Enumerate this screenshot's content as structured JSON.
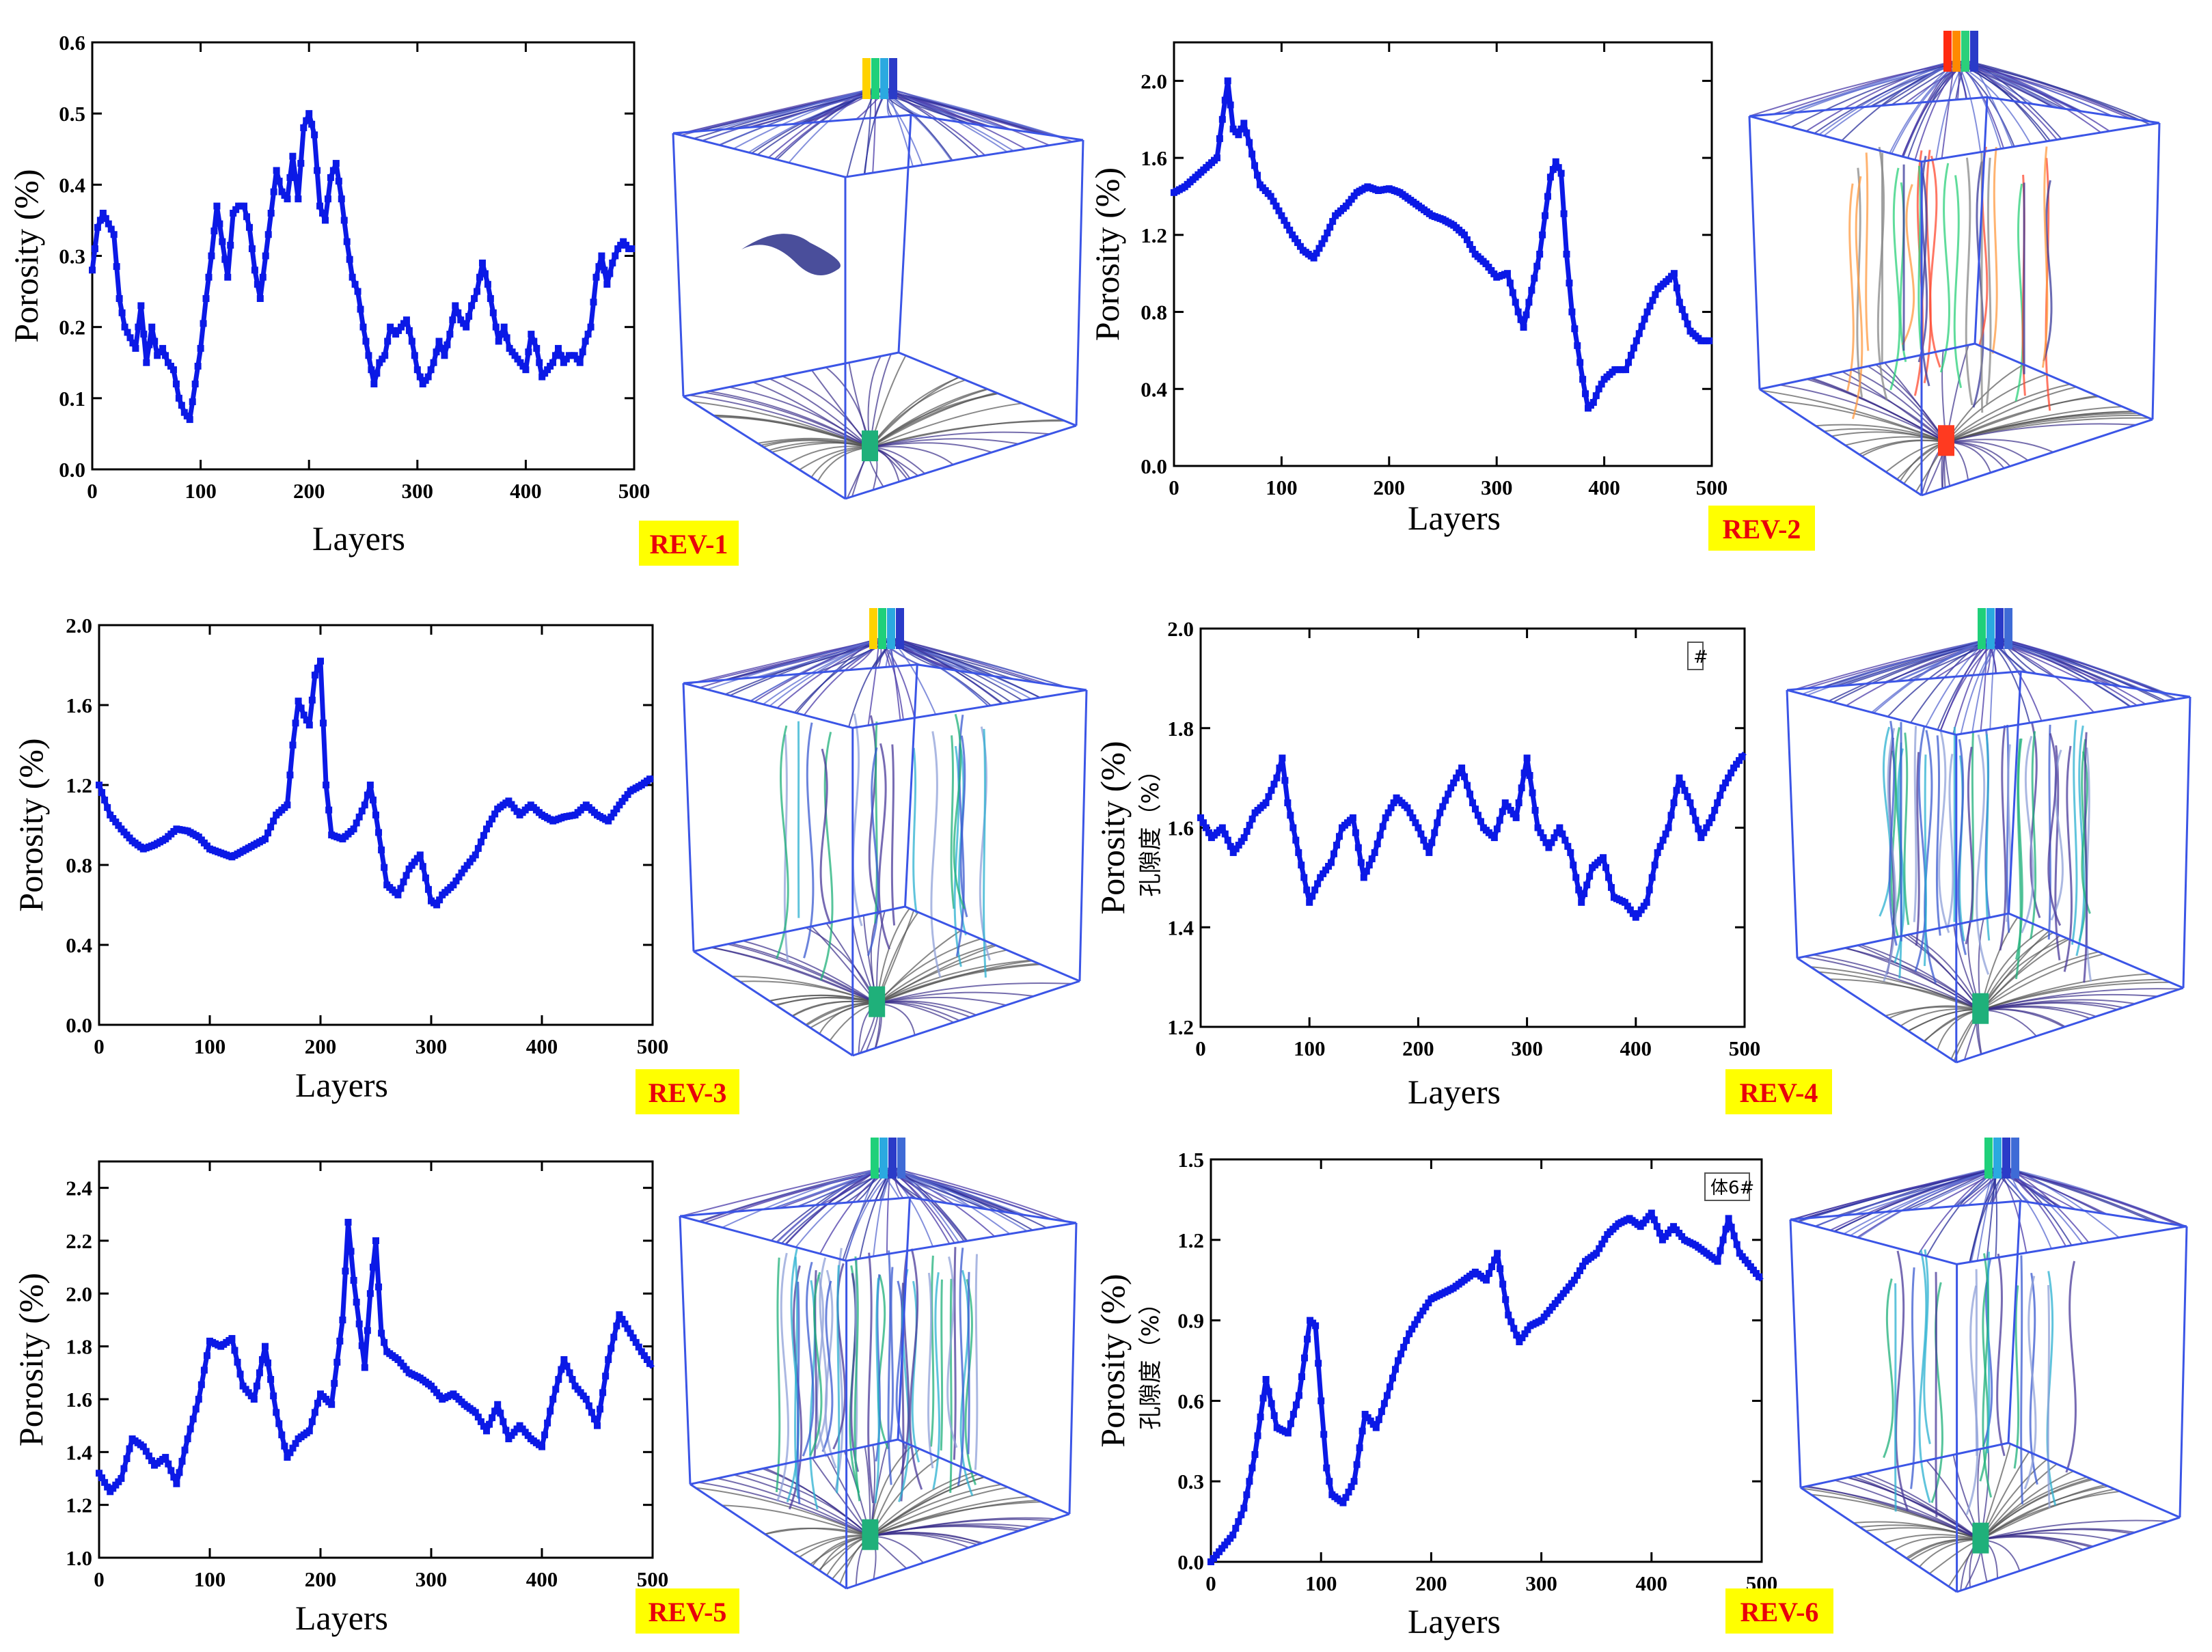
{
  "figure": {
    "colors": {
      "series": "#0b19e6",
      "cube_edge": "#3b55e6",
      "label_bg": "#ffff00",
      "label_text": "#e8000b",
      "axis": "#000000"
    }
  },
  "chart_data": [
    {
      "id": "rev1",
      "type": "line",
      "label": "REV-1",
      "xlabel": "Layers",
      "ylabel": "Porosity (%)",
      "ylabel_cn": "",
      "xlim": [
        0,
        500
      ],
      "ylim": [
        0.0,
        0.6
      ],
      "xticks": [
        0,
        100,
        200,
        300,
        400,
        500
      ],
      "yticks": [
        0.0,
        0.1,
        0.2,
        0.3,
        0.4,
        0.5,
        0.6
      ],
      "ytick_labels": [
        "0.0",
        "0.1",
        "0.2",
        "0.3",
        "0.4",
        "0.5",
        "0.6"
      ],
      "legend_text": "",
      "series": [
        {
          "name": "Porosity",
          "x": [
            0,
            5,
            10,
            20,
            25,
            30,
            40,
            45,
            50,
            55,
            60,
            65,
            70,
            75,
            80,
            85,
            90,
            95,
            100,
            105,
            110,
            115,
            120,
            125,
            130,
            135,
            140,
            145,
            150,
            155,
            160,
            165,
            170,
            175,
            180,
            185,
            190,
            195,
            200,
            205,
            210,
            215,
            220,
            225,
            230,
            235,
            240,
            245,
            250,
            255,
            260,
            265,
            270,
            275,
            280,
            285,
            290,
            295,
            300,
            305,
            310,
            315,
            320,
            325,
            330,
            335,
            340,
            345,
            350,
            355,
            360,
            365,
            370,
            375,
            380,
            385,
            390,
            395,
            400,
            405,
            410,
            415,
            420,
            425,
            430,
            435,
            440,
            445,
            450,
            455,
            460,
            465,
            470,
            475,
            480,
            485,
            490,
            495,
            500
          ],
          "values": [
            0.28,
            0.34,
            0.36,
            0.33,
            0.24,
            0.2,
            0.17,
            0.23,
            0.15,
            0.2,
            0.16,
            0.17,
            0.15,
            0.14,
            0.1,
            0.08,
            0.07,
            0.12,
            0.17,
            0.24,
            0.3,
            0.37,
            0.32,
            0.27,
            0.36,
            0.37,
            0.37,
            0.34,
            0.28,
            0.24,
            0.3,
            0.36,
            0.42,
            0.39,
            0.38,
            0.44,
            0.38,
            0.48,
            0.5,
            0.47,
            0.37,
            0.35,
            0.41,
            0.43,
            0.38,
            0.32,
            0.27,
            0.25,
            0.2,
            0.16,
            0.12,
            0.15,
            0.16,
            0.2,
            0.19,
            0.2,
            0.21,
            0.18,
            0.14,
            0.12,
            0.13,
            0.15,
            0.18,
            0.16,
            0.19,
            0.23,
            0.21,
            0.2,
            0.23,
            0.25,
            0.29,
            0.26,
            0.22,
            0.18,
            0.2,
            0.17,
            0.16,
            0.15,
            0.14,
            0.19,
            0.17,
            0.13,
            0.14,
            0.15,
            0.17,
            0.15,
            0.16,
            0.16,
            0.15,
            0.18,
            0.2,
            0.27,
            0.3,
            0.26,
            0.29,
            0.31,
            0.32,
            0.31,
            0.31
          ]
        }
      ]
    },
    {
      "id": "rev2",
      "type": "line",
      "label": "REV-2",
      "xlabel": "Layers",
      "ylabel": "Porosity (%)",
      "ylabel_cn": "",
      "xlim": [
        0,
        500
      ],
      "ylim": [
        0.0,
        2.2
      ],
      "xticks": [
        0,
        100,
        200,
        300,
        400,
        500
      ],
      "yticks": [
        0.0,
        0.4,
        0.8,
        1.2,
        1.6,
        2.0
      ],
      "ytick_labels": [
        "0.0",
        "0.4",
        "0.8",
        "1.2",
        "1.6",
        "2.0"
      ],
      "legend_text": "",
      "series": [
        {
          "name": "Porosity",
          "x": [
            0,
            10,
            20,
            30,
            40,
            45,
            50,
            55,
            60,
            65,
            70,
            75,
            80,
            90,
            100,
            110,
            120,
            130,
            140,
            150,
            160,
            170,
            180,
            190,
            200,
            210,
            220,
            230,
            240,
            250,
            260,
            270,
            280,
            290,
            300,
            310,
            320,
            325,
            330,
            340,
            350,
            355,
            360,
            365,
            370,
            380,
            385,
            390,
            395,
            400,
            410,
            420,
            430,
            440,
            450,
            460,
            465,
            470,
            480,
            490,
            500
          ],
          "values": [
            1.42,
            1.45,
            1.5,
            1.55,
            1.6,
            1.8,
            2.0,
            1.75,
            1.72,
            1.78,
            1.68,
            1.56,
            1.46,
            1.4,
            1.3,
            1.2,
            1.12,
            1.08,
            1.18,
            1.3,
            1.35,
            1.42,
            1.45,
            1.43,
            1.44,
            1.42,
            1.38,
            1.34,
            1.3,
            1.28,
            1.25,
            1.2,
            1.1,
            1.05,
            0.98,
            1.0,
            0.8,
            0.72,
            0.85,
            1.1,
            1.5,
            1.58,
            1.52,
            1.1,
            0.8,
            0.45,
            0.3,
            0.33,
            0.4,
            0.45,
            0.5,
            0.5,
            0.65,
            0.8,
            0.92,
            0.97,
            1.0,
            0.85,
            0.7,
            0.65,
            0.65
          ]
        }
      ]
    },
    {
      "id": "rev3",
      "type": "line",
      "label": "REV-3",
      "xlabel": "Layers",
      "ylabel": "Porosity (%)",
      "ylabel_cn": "",
      "xlim": [
        0,
        500
      ],
      "ylim": [
        0.0,
        2.0
      ],
      "xticks": [
        0,
        100,
        200,
        300,
        400,
        500
      ],
      "yticks": [
        0.0,
        0.4,
        0.8,
        1.2,
        1.6,
        2.0
      ],
      "ytick_labels": [
        "0.0",
        "0.4",
        "0.8",
        "1.2",
        "1.6",
        "2.0"
      ],
      "legend_text": "",
      "series": [
        {
          "name": "Porosity",
          "x": [
            0,
            10,
            20,
            30,
            40,
            50,
            60,
            70,
            80,
            90,
            100,
            110,
            120,
            130,
            140,
            150,
            160,
            170,
            175,
            180,
            185,
            190,
            195,
            200,
            205,
            210,
            220,
            230,
            240,
            245,
            250,
            260,
            270,
            280,
            290,
            300,
            305,
            310,
            320,
            330,
            340,
            350,
            360,
            370,
            380,
            390,
            400,
            410,
            420,
            430,
            440,
            450,
            460,
            470,
            480,
            490,
            500
          ],
          "values": [
            1.2,
            1.05,
            0.98,
            0.92,
            0.88,
            0.9,
            0.93,
            0.98,
            0.97,
            0.94,
            0.88,
            0.86,
            0.84,
            0.87,
            0.9,
            0.93,
            1.05,
            1.1,
            1.4,
            1.62,
            1.55,
            1.5,
            1.75,
            1.82,
            1.2,
            0.95,
            0.93,
            0.98,
            1.1,
            1.2,
            1.05,
            0.7,
            0.65,
            0.78,
            0.85,
            0.62,
            0.6,
            0.65,
            0.7,
            0.78,
            0.85,
            0.98,
            1.08,
            1.12,
            1.05,
            1.1,
            1.05,
            1.02,
            1.04,
            1.05,
            1.1,
            1.05,
            1.02,
            1.1,
            1.17,
            1.2,
            1.24
          ]
        }
      ]
    },
    {
      "id": "rev4",
      "type": "line",
      "label": "REV-4",
      "xlabel": "Layers",
      "ylabel": "Porosity (%)",
      "ylabel_cn": "孔隙度（%）",
      "xlim": [
        0,
        500
      ],
      "ylim": [
        1.2,
        2.0
      ],
      "xticks": [
        0,
        100,
        200,
        300,
        400,
        500
      ],
      "yticks": [
        1.2,
        1.4,
        1.6,
        1.8,
        2.0
      ],
      "ytick_labels": [
        "1.2",
        "1.4",
        "1.6",
        "1.8",
        "2.0"
      ],
      "legend_text": "#",
      "series": [
        {
          "name": "Porosity",
          "x": [
            0,
            10,
            20,
            30,
            40,
            50,
            60,
            70,
            75,
            80,
            90,
            100,
            110,
            120,
            130,
            140,
            150,
            160,
            170,
            180,
            190,
            200,
            210,
            220,
            230,
            240,
            250,
            260,
            270,
            280,
            290,
            300,
            310,
            320,
            330,
            340,
            350,
            360,
            370,
            380,
            390,
            400,
            410,
            420,
            430,
            440,
            450,
            460,
            470,
            480,
            490,
            500
          ],
          "values": [
            1.62,
            1.58,
            1.6,
            1.55,
            1.58,
            1.63,
            1.65,
            1.7,
            1.74,
            1.65,
            1.55,
            1.45,
            1.5,
            1.53,
            1.6,
            1.62,
            1.5,
            1.55,
            1.62,
            1.66,
            1.64,
            1.6,
            1.55,
            1.63,
            1.68,
            1.72,
            1.65,
            1.6,
            1.58,
            1.65,
            1.62,
            1.74,
            1.6,
            1.56,
            1.6,
            1.55,
            1.45,
            1.52,
            1.54,
            1.46,
            1.45,
            1.42,
            1.45,
            1.55,
            1.6,
            1.7,
            1.65,
            1.58,
            1.62,
            1.68,
            1.72,
            1.75
          ]
        }
      ]
    },
    {
      "id": "rev5",
      "type": "line",
      "label": "REV-5",
      "xlabel": "Layers",
      "ylabel": "Porosity (%)",
      "ylabel_cn": "",
      "xlim": [
        0,
        500
      ],
      "ylim": [
        1.0,
        2.5
      ],
      "xticks": [
        0,
        100,
        200,
        300,
        400,
        500
      ],
      "yticks": [
        1.0,
        1.2,
        1.4,
        1.6,
        1.8,
        2.0,
        2.2,
        2.4
      ],
      "ytick_labels": [
        "1.0",
        "1.2",
        "1.4",
        "1.6",
        "1.8",
        "2.0",
        "2.2",
        "2.4"
      ],
      "legend_text": "",
      "series": [
        {
          "name": "Porosity",
          "x": [
            0,
            10,
            20,
            30,
            40,
            50,
            60,
            70,
            80,
            90,
            100,
            110,
            120,
            130,
            140,
            150,
            160,
            170,
            180,
            190,
            200,
            210,
            220,
            225,
            230,
            240,
            245,
            250,
            255,
            260,
            270,
            280,
            290,
            300,
            310,
            320,
            330,
            340,
            350,
            360,
            370,
            380,
            390,
            400,
            410,
            420,
            430,
            440,
            450,
            460,
            470,
            480,
            490,
            500
          ],
          "values": [
            1.32,
            1.25,
            1.3,
            1.45,
            1.42,
            1.35,
            1.38,
            1.28,
            1.45,
            1.6,
            1.82,
            1.8,
            1.83,
            1.65,
            1.6,
            1.8,
            1.55,
            1.38,
            1.45,
            1.48,
            1.62,
            1.58,
            1.9,
            2.27,
            2.05,
            1.72,
            2.0,
            2.2,
            1.85,
            1.78,
            1.75,
            1.7,
            1.68,
            1.65,
            1.6,
            1.62,
            1.58,
            1.55,
            1.48,
            1.58,
            1.45,
            1.5,
            1.45,
            1.42,
            1.6,
            1.75,
            1.65,
            1.6,
            1.5,
            1.75,
            1.92,
            1.85,
            1.78,
            1.72
          ]
        }
      ]
    },
    {
      "id": "rev6",
      "type": "line",
      "label": "REV-6",
      "xlabel": "Layers",
      "ylabel": "Porosity (%)",
      "ylabel_cn": "孔隙度（%）",
      "xlim": [
        0,
        500
      ],
      "ylim": [
        0.0,
        1.5
      ],
      "xticks": [
        0,
        100,
        200,
        300,
        400,
        500
      ],
      "yticks": [
        0.0,
        0.3,
        0.6,
        0.9,
        1.2,
        1.5
      ],
      "ytick_labels": [
        "0.0",
        "0.3",
        "0.6",
        "0.9",
        "1.2",
        "1.5"
      ],
      "legend_text": "体6#",
      "series": [
        {
          "name": "Porosity",
          "x": [
            0,
            10,
            20,
            30,
            40,
            50,
            60,
            70,
            80,
            90,
            95,
            100,
            105,
            110,
            120,
            130,
            140,
            150,
            160,
            170,
            180,
            190,
            200,
            210,
            220,
            230,
            240,
            250,
            260,
            270,
            280,
            290,
            300,
            310,
            320,
            330,
            340,
            350,
            360,
            370,
            380,
            390,
            400,
            410,
            420,
            430,
            440,
            450,
            460,
            470,
            480,
            490,
            500
          ],
          "values": [
            0.0,
            0.05,
            0.1,
            0.2,
            0.4,
            0.68,
            0.5,
            0.48,
            0.62,
            0.9,
            0.88,
            0.6,
            0.35,
            0.25,
            0.22,
            0.3,
            0.55,
            0.5,
            0.62,
            0.75,
            0.85,
            0.92,
            0.98,
            1.0,
            1.02,
            1.05,
            1.08,
            1.05,
            1.15,
            0.92,
            0.82,
            0.88,
            0.9,
            0.95,
            1.0,
            1.05,
            1.12,
            1.15,
            1.22,
            1.26,
            1.28,
            1.25,
            1.3,
            1.2,
            1.25,
            1.2,
            1.18,
            1.15,
            1.12,
            1.28,
            1.15,
            1.1,
            1.05
          ]
        }
      ]
    }
  ],
  "cubes": [
    {
      "id": "cube1",
      "top_colors": [
        "#ffd200",
        "#1fd07a",
        "#2ba9e0",
        "#2a3bc8"
      ],
      "variant": "sparse"
    },
    {
      "id": "cube2",
      "top_colors": [
        "#ff2a10",
        "#ff8a00",
        "#2bd07a",
        "#2a3bc8"
      ],
      "variant": "mixed"
    },
    {
      "id": "cube3",
      "top_colors": [
        "#ffd200",
        "#1fd07a",
        "#2ba9e0",
        "#2a3bc8"
      ],
      "variant": "few"
    },
    {
      "id": "cube4",
      "top_colors": [
        "#1fd07a",
        "#2ba9e0",
        "#2a3bc8",
        "#3f6bd6"
      ],
      "variant": "dense"
    },
    {
      "id": "cube5",
      "top_colors": [
        "#1fd07a",
        "#2ba9e0",
        "#2a3bc8",
        "#3f6bd6"
      ],
      "variant": "dense"
    },
    {
      "id": "cube6",
      "top_colors": [
        "#1fd07a",
        "#2ba9e0",
        "#2a3bc8",
        "#3f6bd6"
      ],
      "variant": "few"
    }
  ]
}
